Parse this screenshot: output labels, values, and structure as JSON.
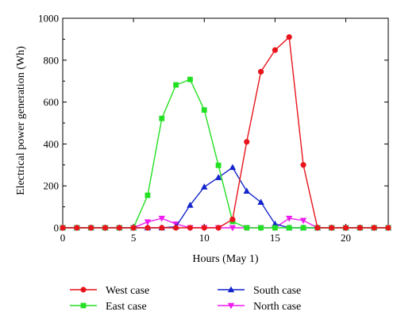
{
  "chart_data": {
    "type": "line",
    "xlabel": "Hours (May 1)",
    "ylabel": "Electrical power generation (Wh)",
    "xlim": [
      0,
      23
    ],
    "ylim": [
      0,
      1000
    ],
    "xticks": [
      0,
      5,
      10,
      15,
      20
    ],
    "yticks": [
      0,
      200,
      400,
      600,
      800,
      1000
    ],
    "grid": false,
    "legend_position": "bottom",
    "x": [
      0,
      1,
      2,
      3,
      4,
      5,
      6,
      7,
      8,
      9,
      10,
      11,
      12,
      13,
      14,
      15,
      16,
      17,
      18,
      19,
      20,
      21,
      22,
      23
    ],
    "series": [
      {
        "name": "West case",
        "color": "#e8141c",
        "marker": "circle",
        "values": [
          0,
          0,
          0,
          0,
          0,
          0,
          0,
          0,
          0,
          0,
          0,
          0,
          40,
          410,
          745,
          848,
          910,
          300,
          0,
          0,
          0,
          0,
          0,
          0
        ]
      },
      {
        "name": "East case",
        "color": "#22e022",
        "marker": "square",
        "values": [
          0,
          0,
          0,
          0,
          0,
          0,
          155,
          522,
          682,
          708,
          562,
          298,
          30,
          0,
          0,
          0,
          0,
          0,
          0,
          0,
          0,
          0,
          0,
          0
        ]
      },
      {
        "name": "South case",
        "color": "#1224cc",
        "marker": "triangle-up",
        "values": [
          0,
          0,
          0,
          0,
          0,
          0,
          0,
          0,
          5,
          108,
          195,
          240,
          288,
          175,
          122,
          18,
          0,
          0,
          0,
          0,
          0,
          0,
          0,
          0
        ]
      },
      {
        "name": "North case",
        "color": "#ee1cee",
        "marker": "triangle-down",
        "values": [
          0,
          0,
          0,
          0,
          0,
          0,
          28,
          45,
          18,
          0,
          0,
          0,
          0,
          0,
          0,
          0,
          45,
          35,
          0,
          0,
          0,
          0,
          0,
          0
        ]
      }
    ]
  }
}
